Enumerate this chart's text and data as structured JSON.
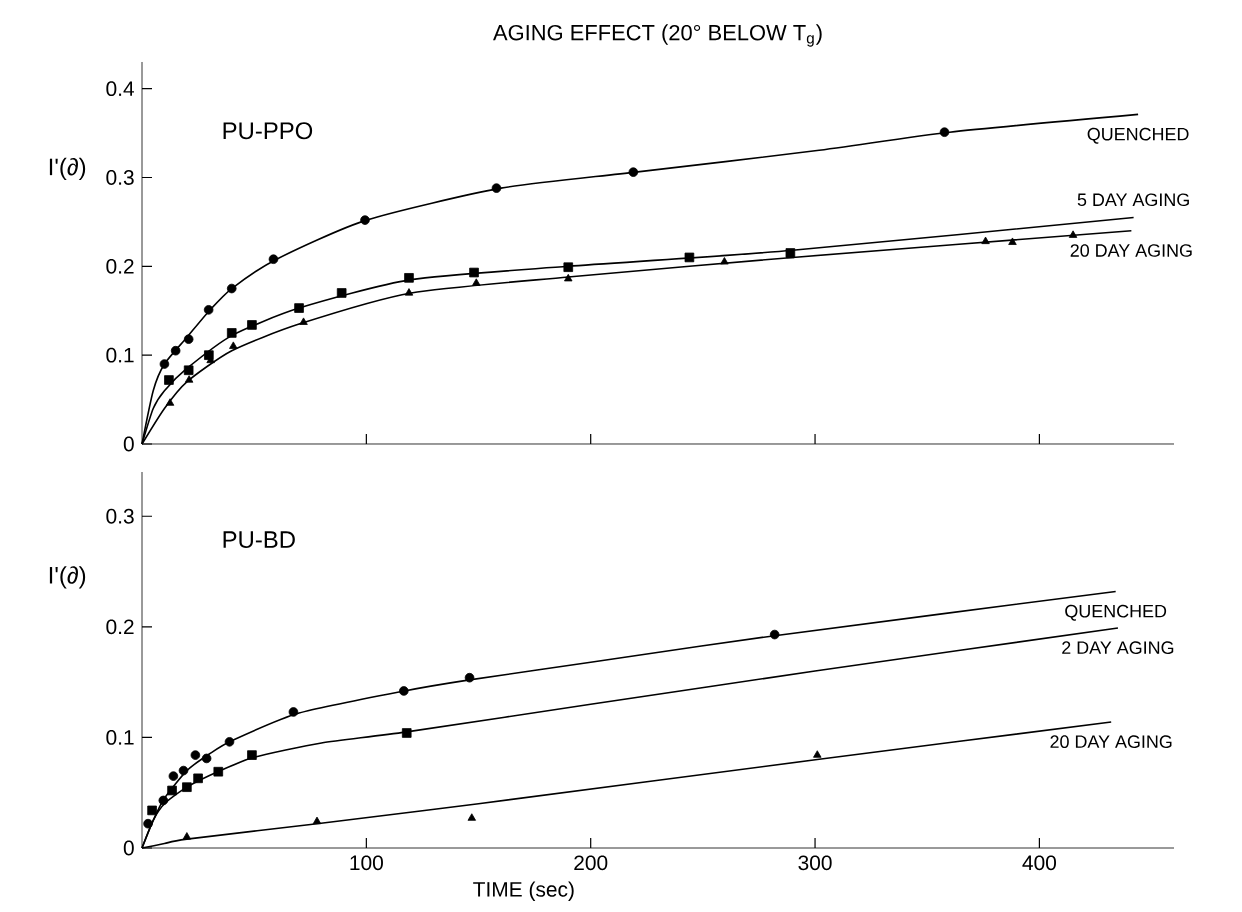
{
  "chart_data": [
    {
      "type": "line",
      "title": "AGING EFFECT (20° BELOW T$_{g}$)",
      "subtitle": "PU-PPO",
      "ylabel": "I'(∂)",
      "xlim": [
        0,
        460
      ],
      "ylim": [
        0,
        0.43
      ],
      "xticks": [
        100,
        200,
        300,
        400
      ],
      "yticks": [
        0,
        0.1,
        0.2,
        0.3,
        0.4
      ],
      "tick_labels": "y",
      "series": [
        {
          "type": "scatter",
          "marker": "circle",
          "color": "#000000",
          "x": [
            10,
            15,
            20.8,
            29.7,
            40,
            58.6,
            99.4,
            158,
            219,
            357.7
          ],
          "values": [
            0.09,
            0.105,
            0.118,
            0.151,
            0.175,
            0.208,
            0.252,
            0.288,
            0.306,
            0.351
          ]
        },
        {
          "type": "scatter",
          "marker": "square",
          "color": "#000000",
          "x": [
            12,
            20.8,
            29.8,
            40,
            49,
            70,
            89,
            119,
            148,
            190,
            244,
            289
          ],
          "values": [
            0.072,
            0.083,
            0.1,
            0.125,
            0.134,
            0.153,
            0.17,
            0.187,
            0.193,
            0.199,
            0.21,
            0.215
          ]
        },
        {
          "type": "scatter",
          "marker": "triangle",
          "color": "#000000",
          "x": [
            12.5,
            21,
            30.6,
            40.7,
            72,
            119,
            149,
            190,
            259.6,
            289,
            376,
            388,
            415
          ],
          "values": [
            0.046,
            0.072,
            0.094,
            0.11,
            0.137,
            0.17,
            0.181,
            0.186,
            0.205,
            0.212,
            0.228,
            0.227,
            0.235
          ]
        },
        {
          "name": "QUENCHED",
          "color": "#000000",
          "x": [
            0,
            5,
            10,
            20,
            30,
            40,
            60,
            100,
            160,
            220,
            300,
            360,
            444
          ],
          "values": [
            0,
            0.06,
            0.09,
            0.12,
            0.15,
            0.175,
            0.208,
            0.252,
            0.288,
            0.306,
            0.33,
            0.351,
            0.371
          ]
        },
        {
          "name": "5 DAY AGING",
          "color": "#000000",
          "x": [
            0,
            5,
            10,
            20,
            40,
            70,
            120,
            190,
            290,
            442
          ],
          "values": [
            0,
            0.04,
            0.06,
            0.085,
            0.122,
            0.153,
            0.185,
            0.2,
            0.218,
            0.255
          ]
        },
        {
          "name": "20 DAY AGING",
          "color": "#000000",
          "x": [
            0,
            10,
            20,
            40,
            70,
            120,
            190,
            290,
            441
          ],
          "values": [
            0,
            0.04,
            0.07,
            0.105,
            0.135,
            0.17,
            0.188,
            0.21,
            0.24
          ]
        }
      ]
    },
    {
      "type": "line",
      "subtitle": "PU-BD",
      "ylabel": "I'(∂)",
      "xlabel": "TIME (sec)",
      "xlim": [
        0,
        460
      ],
      "ylim": [
        0,
        0.34
      ],
      "xticks": [
        100,
        200,
        300,
        400
      ],
      "yticks": [
        0,
        0.1,
        0.2,
        0.3
      ],
      "series": [
        {
          "type": "scatter",
          "marker": "circle",
          "color": "#000000",
          "x": [
            2.7,
            9.5,
            14,
            18.5,
            23.8,
            28.8,
            39,
            67.5,
            116.7,
            146,
            282
          ],
          "values": [
            0.022,
            0.043,
            0.065,
            0.07,
            0.084,
            0.081,
            0.096,
            0.123,
            0.142,
            0.154,
            0.193
          ]
        },
        {
          "type": "scatter",
          "marker": "square",
          "color": "#000000",
          "x": [
            4.5,
            13.4,
            20,
            25,
            34,
            49,
            118
          ],
          "values": [
            0.034,
            0.052,
            0.055,
            0.063,
            0.069,
            0.084,
            0.104
          ]
        },
        {
          "type": "scatter",
          "marker": "triangle",
          "color": "#000000",
          "x": [
            20,
            78,
            147,
            301
          ],
          "values": [
            0.01,
            0.024,
            0.027,
            0.084
          ]
        },
        {
          "name": "QUENCHED",
          "color": "#000000",
          "x": [
            0,
            5,
            10,
            20,
            30,
            40,
            70,
            117,
            146,
            200,
            282,
            434
          ],
          "values": [
            0,
            0.025,
            0.045,
            0.07,
            0.085,
            0.097,
            0.122,
            0.142,
            0.152,
            0.168,
            0.192,
            0.232
          ]
        },
        {
          "name": "2 DAY AGING",
          "color": "#000000",
          "x": [
            0,
            5,
            10,
            20,
            35,
            50,
            80,
            118,
            200,
            300,
            435
          ],
          "values": [
            0,
            0.025,
            0.04,
            0.055,
            0.07,
            0.082,
            0.095,
            0.105,
            0.13,
            0.16,
            0.199
          ]
        },
        {
          "name": "20 DAY AGING",
          "color": "#000000",
          "x": [
            0,
            10,
            20,
            78,
            150,
            301,
            432
          ],
          "values": [
            0,
            0.004,
            0.008,
            0.022,
            0.04,
            0.08,
            0.114
          ]
        }
      ]
    }
  ]
}
